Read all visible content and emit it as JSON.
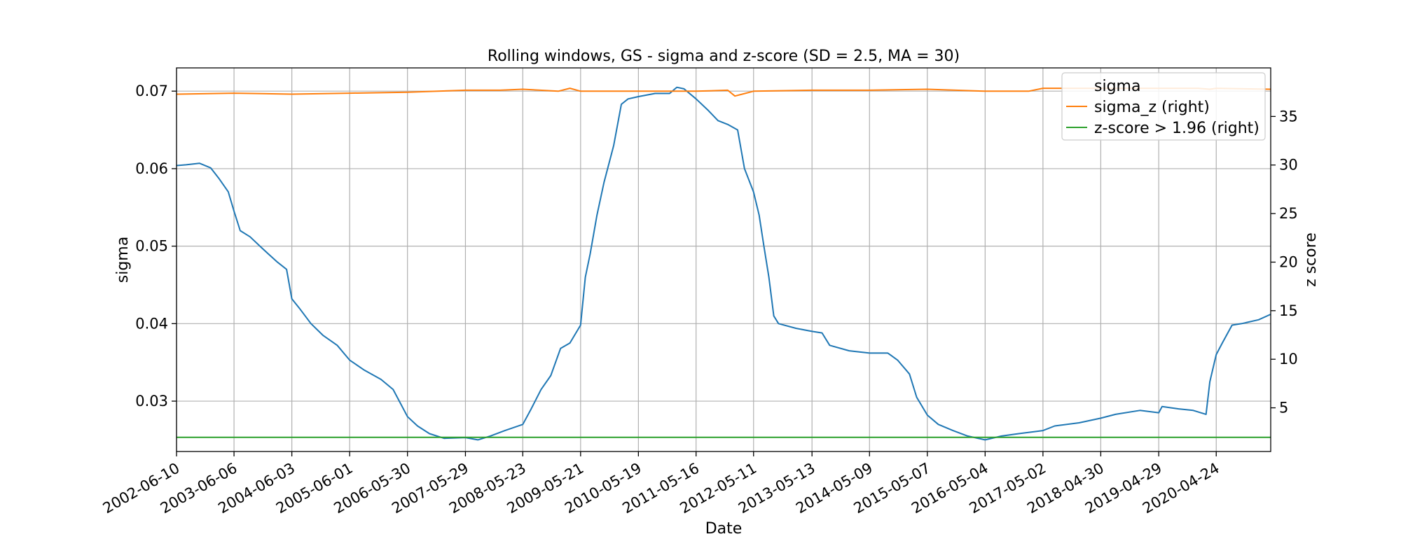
{
  "chart_data": {
    "type": "line",
    "title": "Rolling windows, GS - sigma and z-score (SD = 2.5, MA = 30)",
    "xlabel": "Date",
    "ylabel": "sigma",
    "ylabel_right": "z score",
    "x_ticks": [
      "2002-06-10",
      "2003-06-06",
      "2004-06-03",
      "2005-06-01",
      "2006-05-30",
      "2007-05-29",
      "2008-05-23",
      "2009-05-21",
      "2010-05-19",
      "2011-05-16",
      "2012-05-11",
      "2013-05-13",
      "2014-05-09",
      "2015-05-07",
      "2016-05-04",
      "2017-05-02",
      "2018-04-30",
      "2019-04-29",
      "2020-04-24"
    ],
    "ylim": [
      0.0235,
      0.073
    ],
    "yticks": [
      0.03,
      0.04,
      0.05,
      0.06,
      0.07
    ],
    "ytick_labels": [
      "0.03",
      "0.04",
      "0.05",
      "0.06",
      "0.07"
    ],
    "ylim_right": [
      0.5,
      40.0
    ],
    "yticks_right": [
      5,
      10,
      15,
      20,
      25,
      30,
      35
    ],
    "ytick_labels_right": [
      "5",
      "10",
      "15",
      "20",
      "25",
      "30",
      "35"
    ],
    "grid": true,
    "legend_position": "top-right",
    "legend": [
      "sigma",
      "sigma_z (right)",
      "z-score > 1.96 (right)"
    ],
    "series": [
      {
        "name": "sigma",
        "axis": "left",
        "color": "#1f77b4",
        "points": [
          [
            "2002-06-10",
            0.0604
          ],
          [
            "2002-08-10",
            0.0605
          ],
          [
            "2002-11-01",
            0.0607
          ],
          [
            "2003-01-10",
            0.0601
          ],
          [
            "2003-03-01",
            0.0588
          ],
          [
            "2003-05-01",
            0.057
          ],
          [
            "2003-06-06",
            0.0545
          ],
          [
            "2003-07-15",
            0.052
          ],
          [
            "2003-09-15",
            0.0512
          ],
          [
            "2003-12-01",
            0.0497
          ],
          [
            "2004-03-01",
            0.048
          ],
          [
            "2004-05-01",
            0.047
          ],
          [
            "2004-06-03",
            0.0432
          ],
          [
            "2004-07-20",
            0.042
          ],
          [
            "2004-10-01",
            0.04
          ],
          [
            "2004-12-15",
            0.0385
          ],
          [
            "2005-03-15",
            0.0372
          ],
          [
            "2005-06-01",
            0.0353
          ],
          [
            "2005-09-01",
            0.034
          ],
          [
            "2005-12-15",
            0.0328
          ],
          [
            "2006-03-01",
            0.0315
          ],
          [
            "2006-05-30",
            0.028
          ],
          [
            "2006-08-01",
            0.0268
          ],
          [
            "2006-10-15",
            0.0258
          ],
          [
            "2007-01-15",
            0.0252
          ],
          [
            "2007-05-29",
            0.0253
          ],
          [
            "2007-08-15",
            0.025
          ],
          [
            "2007-11-01",
            0.0255
          ],
          [
            "2008-02-01",
            0.0262
          ],
          [
            "2008-05-23",
            0.027
          ],
          [
            "2008-07-15",
            0.029
          ],
          [
            "2008-09-15",
            0.0315
          ],
          [
            "2008-11-15",
            0.0333
          ],
          [
            "2009-01-15",
            0.0368
          ],
          [
            "2009-03-15",
            0.0375
          ],
          [
            "2009-05-21",
            0.0398
          ],
          [
            "2009-06-20",
            0.046
          ],
          [
            "2009-07-20",
            0.049
          ],
          [
            "2009-09-01",
            0.054
          ],
          [
            "2009-10-15",
            0.0582
          ],
          [
            "2009-12-15",
            0.063
          ],
          [
            "2010-02-01",
            0.0683
          ],
          [
            "2010-03-15",
            0.069
          ],
          [
            "2010-05-19",
            0.0693
          ],
          [
            "2010-09-01",
            0.0697
          ],
          [
            "2010-12-01",
            0.0697
          ],
          [
            "2011-01-15",
            0.0705
          ],
          [
            "2011-03-01",
            0.0703
          ],
          [
            "2011-05-16",
            0.069
          ],
          [
            "2011-08-01",
            0.0675
          ],
          [
            "2011-10-01",
            0.0662
          ],
          [
            "2011-12-01",
            0.0657
          ],
          [
            "2012-02-01",
            0.065
          ],
          [
            "2012-03-15",
            0.06
          ],
          [
            "2012-05-11",
            0.057
          ],
          [
            "2012-06-15",
            0.054
          ],
          [
            "2012-07-15",
            0.05
          ],
          [
            "2012-08-15",
            0.046
          ],
          [
            "2012-09-15",
            0.041
          ],
          [
            "2012-10-15",
            0.04
          ],
          [
            "2013-02-01",
            0.0394
          ],
          [
            "2013-05-13",
            0.039
          ],
          [
            "2013-07-15",
            0.0388
          ],
          [
            "2013-09-01",
            0.0372
          ],
          [
            "2014-01-01",
            0.0365
          ],
          [
            "2014-05-09",
            0.0362
          ],
          [
            "2014-09-01",
            0.0362
          ],
          [
            "2014-11-01",
            0.0353
          ],
          [
            "2015-01-15",
            0.0335
          ],
          [
            "2015-03-01",
            0.0305
          ],
          [
            "2015-05-07",
            0.0282
          ],
          [
            "2015-07-15",
            0.027
          ],
          [
            "2015-10-15",
            0.0262
          ],
          [
            "2016-01-15",
            0.0255
          ],
          [
            "2016-05-04",
            0.025
          ],
          [
            "2016-08-15",
            0.0255
          ],
          [
            "2016-12-01",
            0.0258
          ],
          [
            "2017-05-02",
            0.0262
          ],
          [
            "2017-07-15",
            0.0268
          ],
          [
            "2017-12-15",
            0.0272
          ],
          [
            "2018-04-30",
            0.0278
          ],
          [
            "2018-08-01",
            0.0283
          ],
          [
            "2019-01-01",
            0.0288
          ],
          [
            "2019-04-29",
            0.0285
          ],
          [
            "2019-05-20",
            0.0293
          ],
          [
            "2019-09-01",
            0.029
          ],
          [
            "2019-12-01",
            0.0288
          ],
          [
            "2020-02-20",
            0.0283
          ],
          [
            "2020-03-15",
            0.0325
          ],
          [
            "2020-04-24",
            0.036
          ],
          [
            "2020-06-01",
            0.0375
          ],
          [
            "2020-08-01",
            0.0398
          ],
          [
            "2020-10-01",
            0.04
          ],
          [
            "2021-01-15",
            0.0405
          ],
          [
            "2021-04-01",
            0.0412
          ]
        ]
      },
      {
        "name": "sigma_z (right)",
        "axis": "right",
        "color": "#ff7f0e",
        "points": [
          [
            "2002-06-10",
            37.3
          ],
          [
            "2003-06-06",
            37.4
          ],
          [
            "2004-06-03",
            37.3
          ],
          [
            "2005-06-01",
            37.4
          ],
          [
            "2006-05-30",
            37.5
          ],
          [
            "2007-05-29",
            37.7
          ],
          [
            "2008-01-01",
            37.7
          ],
          [
            "2008-05-23",
            37.8
          ],
          [
            "2009-01-01",
            37.6
          ],
          [
            "2009-03-15",
            37.9
          ],
          [
            "2009-05-21",
            37.6
          ],
          [
            "2010-05-19",
            37.6
          ],
          [
            "2011-05-16",
            37.6
          ],
          [
            "2011-12-01",
            37.7
          ],
          [
            "2012-01-15",
            37.1
          ],
          [
            "2012-03-01",
            37.3
          ],
          [
            "2012-05-11",
            37.6
          ],
          [
            "2013-05-13",
            37.7
          ],
          [
            "2014-05-09",
            37.7
          ],
          [
            "2015-05-07",
            37.8
          ],
          [
            "2016-05-04",
            37.6
          ],
          [
            "2017-02-01",
            37.6
          ],
          [
            "2017-05-02",
            37.9
          ],
          [
            "2018-04-30",
            37.9
          ],
          [
            "2019-04-29",
            37.9
          ],
          [
            "2020-01-01",
            37.9
          ],
          [
            "2020-03-15",
            37.8
          ],
          [
            "2020-04-24",
            37.9
          ],
          [
            "2021-04-01",
            37.8
          ]
        ]
      },
      {
        "name": "z-score > 1.96 (right)",
        "axis": "right",
        "color": "#2ca02c",
        "points": [
          [
            "2002-06-10",
            1.96
          ],
          [
            "2021-04-01",
            1.96
          ]
        ]
      }
    ]
  }
}
